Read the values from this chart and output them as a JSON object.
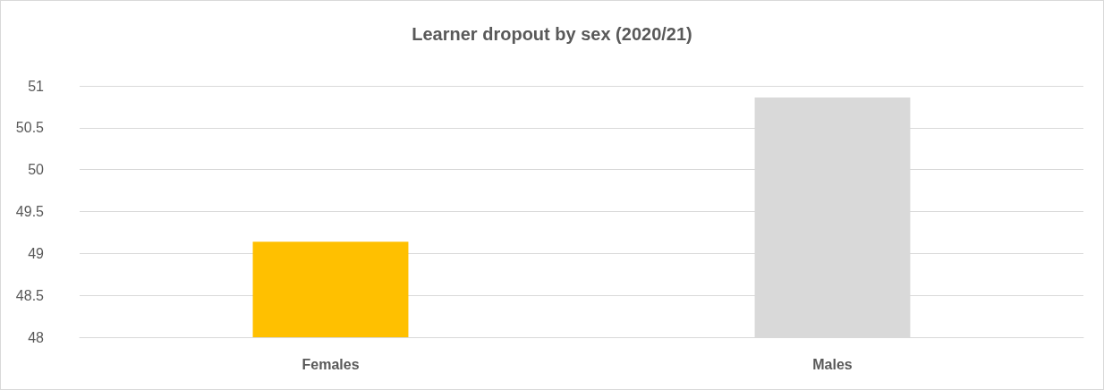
{
  "chart_data": {
    "type": "bar",
    "title": "Learner dropout by sex (2020/21)",
    "categories": [
      "Females",
      "Males"
    ],
    "values": [
      49.14,
      50.86
    ],
    "colors": [
      "#ffc000",
      "#d9d9d9"
    ],
    "ylim": [
      48,
      51
    ],
    "yticks": [
      48,
      48.5,
      49,
      49.5,
      50,
      50.5,
      51
    ],
    "grid": "y"
  }
}
